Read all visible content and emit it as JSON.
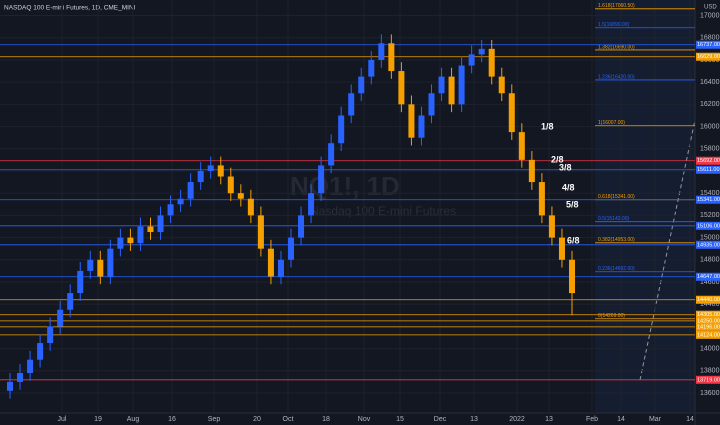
{
  "chart_data": {
    "type": "candlestick",
    "title": "NASDAQ 100 E-mini Futures, 1D, CME_MINI",
    "watermark": "NQ1!, 1D",
    "watermark_subtitle": "Nasdaq 100 E-mini Futures",
    "currency": "USD",
    "up_color": "#2962ff",
    "down_color": "#f59f00",
    "grid": true,
    "ylim": [
      13420,
      17140
    ],
    "yticks": [
      {
        "value": 13600,
        "label": "13600.00"
      },
      {
        "value": 13800,
        "label": "13800.00"
      },
      {
        "value": 14000,
        "label": "14000.00"
      },
      {
        "value": 14200,
        "label": "14200.00"
      },
      {
        "value": 14400,
        "label": "14400.00"
      },
      {
        "value": 14600,
        "label": "14600.00"
      },
      {
        "value": 14800,
        "label": "14800.00"
      },
      {
        "value": 15000,
        "label": "15000.00"
      },
      {
        "value": 15200,
        "label": "15200.00"
      },
      {
        "value": 15400,
        "label": "15400.00"
      },
      {
        "value": 15600,
        "label": "15600.00"
      },
      {
        "value": 15800,
        "label": "15800.00"
      },
      {
        "value": 16000,
        "label": "16000.00"
      },
      {
        "value": 16200,
        "label": "16200.00"
      },
      {
        "value": 16400,
        "label": "16400.00"
      },
      {
        "value": 16600,
        "label": "16600.00"
      },
      {
        "value": 16800,
        "label": "16800.00"
      },
      {
        "value": 17000,
        "label": "17000.00"
      }
    ],
    "x_labels": [
      "Jul",
      "19",
      "Aug",
      "16",
      "Sep",
      "20",
      "Oct",
      "18",
      "Nov",
      "15",
      "Dec",
      "13",
      "2022",
      "13",
      "Feb",
      "14",
      "Mar",
      "14"
    ],
    "open": [
      13620,
      13700,
      13780,
      13900,
      14050,
      14200,
      14350,
      14500,
      14700,
      14800,
      14650,
      14900,
      15000,
      14950,
      15100,
      15050,
      15200,
      15300,
      15350,
      15500,
      15600,
      15650,
      15550,
      15400,
      15350,
      15200,
      14900,
      14650,
      14800,
      15000,
      15200,
      15400,
      15650,
      15850,
      16100,
      16300,
      16450,
      16600,
      16750,
      16500,
      16200,
      15900,
      16100,
      16300,
      16450,
      16200,
      16550,
      16650,
      16700,
      16450,
      16300,
      15950,
      15700,
      15500,
      15200,
      15000,
      14800
    ],
    "high": [
      13780,
      13860,
      13980,
      14130,
      14280,
      14430,
      14580,
      14780,
      14880,
      14880,
      14980,
      15080,
      15080,
      15180,
      15180,
      15280,
      15380,
      15430,
      15580,
      15680,
      15730,
      15730,
      15630,
      15480,
      15430,
      15280,
      14980,
      14880,
      15080,
      15280,
      15480,
      15730,
      15930,
      16180,
      16380,
      16530,
      16680,
      16830,
      16830,
      16580,
      16280,
      16180,
      16380,
      16530,
      16530,
      16630,
      16730,
      16780,
      16780,
      16530,
      16380,
      16030,
      15780,
      15580,
      15280,
      15080,
      14880
    ],
    "low": [
      13550,
      13630,
      13710,
      13830,
      13980,
      14130,
      14280,
      14430,
      14630,
      14580,
      14580,
      14830,
      14880,
      14880,
      14980,
      14980,
      15130,
      15230,
      15280,
      15430,
      15530,
      15480,
      15330,
      15280,
      15130,
      14830,
      14580,
      14580,
      14730,
      14930,
      15130,
      15330,
      15580,
      15780,
      16030,
      16230,
      16380,
      16530,
      16430,
      16130,
      15830,
      15830,
      16030,
      16230,
      16130,
      16130,
      16480,
      16580,
      16380,
      16230,
      15880,
      15630,
      15430,
      15130,
      14930,
      14730,
      14300
    ],
    "close": [
      13700,
      13780,
      13900,
      14050,
      14200,
      14350,
      14500,
      14700,
      14800,
      14650,
      14900,
      15000,
      14950,
      15100,
      15050,
      15200,
      15300,
      15350,
      15500,
      15600,
      15650,
      15550,
      15400,
      15350,
      15200,
      14900,
      14650,
      14800,
      15000,
      15200,
      15400,
      15650,
      15850,
      16100,
      16300,
      16450,
      16600,
      16750,
      16500,
      16200,
      15900,
      16100,
      16300,
      16450,
      16200,
      16550,
      16650,
      16700,
      16450,
      16300,
      15950,
      15700,
      15500,
      15200,
      15000,
      14800,
      14500
    ],
    "price_lines": [
      {
        "value": 16737,
        "label": "16737.00",
        "color": "#2962ff"
      },
      {
        "value": 16629,
        "label": "16629.00",
        "color": "#f59f00"
      },
      {
        "value": 15692,
        "label": "15692.00",
        "color": "#f23645"
      },
      {
        "value": 15611,
        "label": "15611.00",
        "color": "#2962ff"
      },
      {
        "value": 15341,
        "label": "15341.00",
        "color": "#2962ff"
      },
      {
        "value": 15106,
        "label": "15106.00",
        "color": "#2962ff"
      },
      {
        "value": 14935,
        "label": "14935.00",
        "color": "#2962ff"
      },
      {
        "value": 14647,
        "label": "14647.00",
        "color": "#2962ff"
      },
      {
        "value": 14440,
        "label": "14440.00",
        "color": "#f59f00"
      },
      {
        "value": 14305,
        "label": "14305.00",
        "color": "#f59f00"
      },
      {
        "value": 14250,
        "label": "14250.00",
        "color": "#f59f00"
      },
      {
        "value": 14196,
        "label": "14196.00",
        "color": "#f59f00"
      },
      {
        "value": 14124,
        "label": "14124.00",
        "color": "#f59f00"
      },
      {
        "value": 13719,
        "label": "13719.00",
        "color": "#f23645"
      }
    ],
    "fib_levels": [
      {
        "value": 17060.5,
        "label": "1.618(17060.50)",
        "color": "#f59f00"
      },
      {
        "value": 16890,
        "label": "1.5(16890.00)",
        "color": "#2962ff"
      },
      {
        "value": 16690,
        "label": "1.382(16690.00)",
        "color": "#f59f00"
      },
      {
        "value": 16420,
        "label": "1.236(16420.00)",
        "color": "#2962ff"
      },
      {
        "value": 16007,
        "label": "1(16007.00)",
        "color": "#f59f00"
      },
      {
        "value": 15341,
        "label": "0.618(15341.00)",
        "color": "#f59f00"
      },
      {
        "value": 15143,
        "label": "0.5(15143.00)",
        "color": "#2962ff"
      },
      {
        "value": 14953,
        "label": "0.382(14953.00)",
        "color": "#f59f00"
      },
      {
        "value": 14692,
        "label": "0.236(14692.00)",
        "color": "#2962ff"
      },
      {
        "value": 14269,
        "label": "0(14269.00)",
        "color": "#f59f00"
      }
    ],
    "annotations": [
      "1/8",
      "2/8",
      "3/8",
      "4/8",
      "5/8",
      "6/8"
    ]
  }
}
